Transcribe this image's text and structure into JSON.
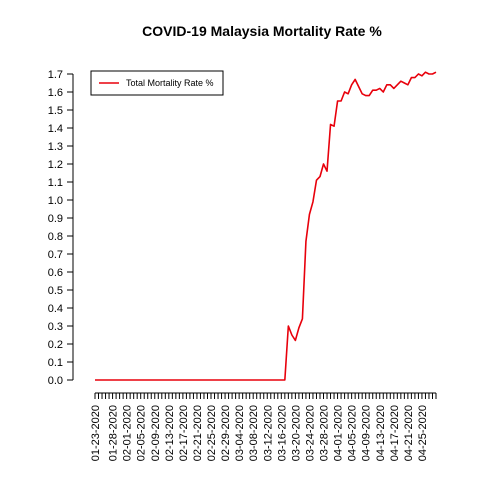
{
  "chart_data": {
    "type": "line",
    "title": "COVID-19 Malaysia Mortality Rate %",
    "xlabel": "",
    "ylabel": "",
    "legend": {
      "placement": "top-left",
      "entries": [
        "Total Mortality Rate %"
      ]
    },
    "grid": false,
    "ylim": [
      0,
      1.7
    ],
    "y_ticks": [
      0.0,
      0.1,
      0.2,
      0.3,
      0.4,
      0.5,
      0.6,
      0.7,
      0.8,
      0.9,
      1.0,
      1.1,
      1.2,
      1.3,
      1.4,
      1.5,
      1.6,
      1.7
    ],
    "y_tick_labels": [
      "0.0",
      "0.1",
      "0.2",
      "0.3",
      "0.4",
      "0.5",
      "0.6",
      "0.7",
      "0.8",
      "0.9",
      "1.0",
      "1.1",
      "1.2",
      "1.3",
      "1.4",
      "1.5",
      "1.6",
      "1.7"
    ],
    "x_tick_labels": [
      "01-23-2020",
      "01-28-2020",
      "02-01-2020",
      "02-05-2020",
      "02-09-2020",
      "02-13-2020",
      "02-17-2020",
      "02-21-2020",
      "02-25-2020",
      "02-29-2020",
      "03-04-2020",
      "03-08-2020",
      "03-12-2020",
      "03-16-2020",
      "03-20-2020",
      "03-24-2020",
      "03-28-2020",
      "04-01-2020",
      "04-05-2020",
      "04-09-2020",
      "04-13-2020",
      "04-17-2020",
      "04-21-2020",
      "04-25-2020"
    ],
    "x": [
      "01-23-2020",
      "01-24-2020",
      "01-25-2020",
      "01-26-2020",
      "01-27-2020",
      "01-28-2020",
      "01-29-2020",
      "01-30-2020",
      "01-31-2020",
      "02-01-2020",
      "02-02-2020",
      "02-03-2020",
      "02-04-2020",
      "02-05-2020",
      "02-06-2020",
      "02-07-2020",
      "02-08-2020",
      "02-09-2020",
      "02-10-2020",
      "02-11-2020",
      "02-12-2020",
      "02-13-2020",
      "02-14-2020",
      "02-15-2020",
      "02-16-2020",
      "02-17-2020",
      "02-18-2020",
      "02-19-2020",
      "02-20-2020",
      "02-21-2020",
      "02-22-2020",
      "02-23-2020",
      "02-24-2020",
      "02-25-2020",
      "02-26-2020",
      "02-27-2020",
      "02-28-2020",
      "02-29-2020",
      "03-01-2020",
      "03-02-2020",
      "03-03-2020",
      "03-04-2020",
      "03-05-2020",
      "03-06-2020",
      "03-07-2020",
      "03-08-2020",
      "03-09-2020",
      "03-10-2020",
      "03-11-2020",
      "03-12-2020",
      "03-13-2020",
      "03-14-2020",
      "03-15-2020",
      "03-16-2020",
      "03-17-2020",
      "03-18-2020",
      "03-19-2020",
      "03-20-2020",
      "03-21-2020",
      "03-22-2020",
      "03-23-2020",
      "03-24-2020",
      "03-25-2020",
      "03-26-2020",
      "03-27-2020",
      "03-28-2020",
      "03-29-2020",
      "03-30-2020",
      "03-31-2020",
      "04-01-2020",
      "04-02-2020",
      "04-03-2020",
      "04-04-2020",
      "04-05-2020",
      "04-06-2020",
      "04-07-2020",
      "04-08-2020",
      "04-09-2020",
      "04-10-2020",
      "04-11-2020",
      "04-12-2020",
      "04-13-2020",
      "04-14-2020",
      "04-15-2020",
      "04-16-2020",
      "04-17-2020",
      "04-18-2020",
      "04-19-2020",
      "04-20-2020",
      "04-21-2020",
      "04-22-2020",
      "04-23-2020",
      "04-24-2020",
      "04-25-2020",
      "04-26-2020",
      "04-27-2020",
      "04-28-2020",
      "04-29-2020"
    ],
    "series": [
      {
        "name": "Total Mortality Rate %",
        "color": "#e8000b",
        "values": [
          0,
          0,
          0,
          0,
          0,
          0,
          0,
          0,
          0,
          0,
          0,
          0,
          0,
          0,
          0,
          0,
          0,
          0,
          0,
          0,
          0,
          0,
          0,
          0,
          0,
          0,
          0,
          0,
          0,
          0,
          0,
          0,
          0,
          0,
          0,
          0,
          0,
          0,
          0,
          0,
          0,
          0,
          0,
          0,
          0,
          0,
          0,
          0,
          0,
          0,
          0,
          0,
          0,
          0,
          0,
          0.3,
          0.25,
          0.22,
          0.29,
          0.34,
          0.77,
          0.92,
          0.99,
          1.11,
          1.13,
          1.2,
          1.16,
          1.42,
          1.41,
          1.55,
          1.55,
          1.6,
          1.59,
          1.64,
          1.67,
          1.63,
          1.59,
          1.58,
          1.58,
          1.61,
          1.61,
          1.62,
          1.6,
          1.64,
          1.64,
          1.62,
          1.64,
          1.66,
          1.65,
          1.64,
          1.68,
          1.68,
          1.7,
          1.69,
          1.71,
          1.7,
          1.7,
          1.71
        ]
      }
    ]
  }
}
